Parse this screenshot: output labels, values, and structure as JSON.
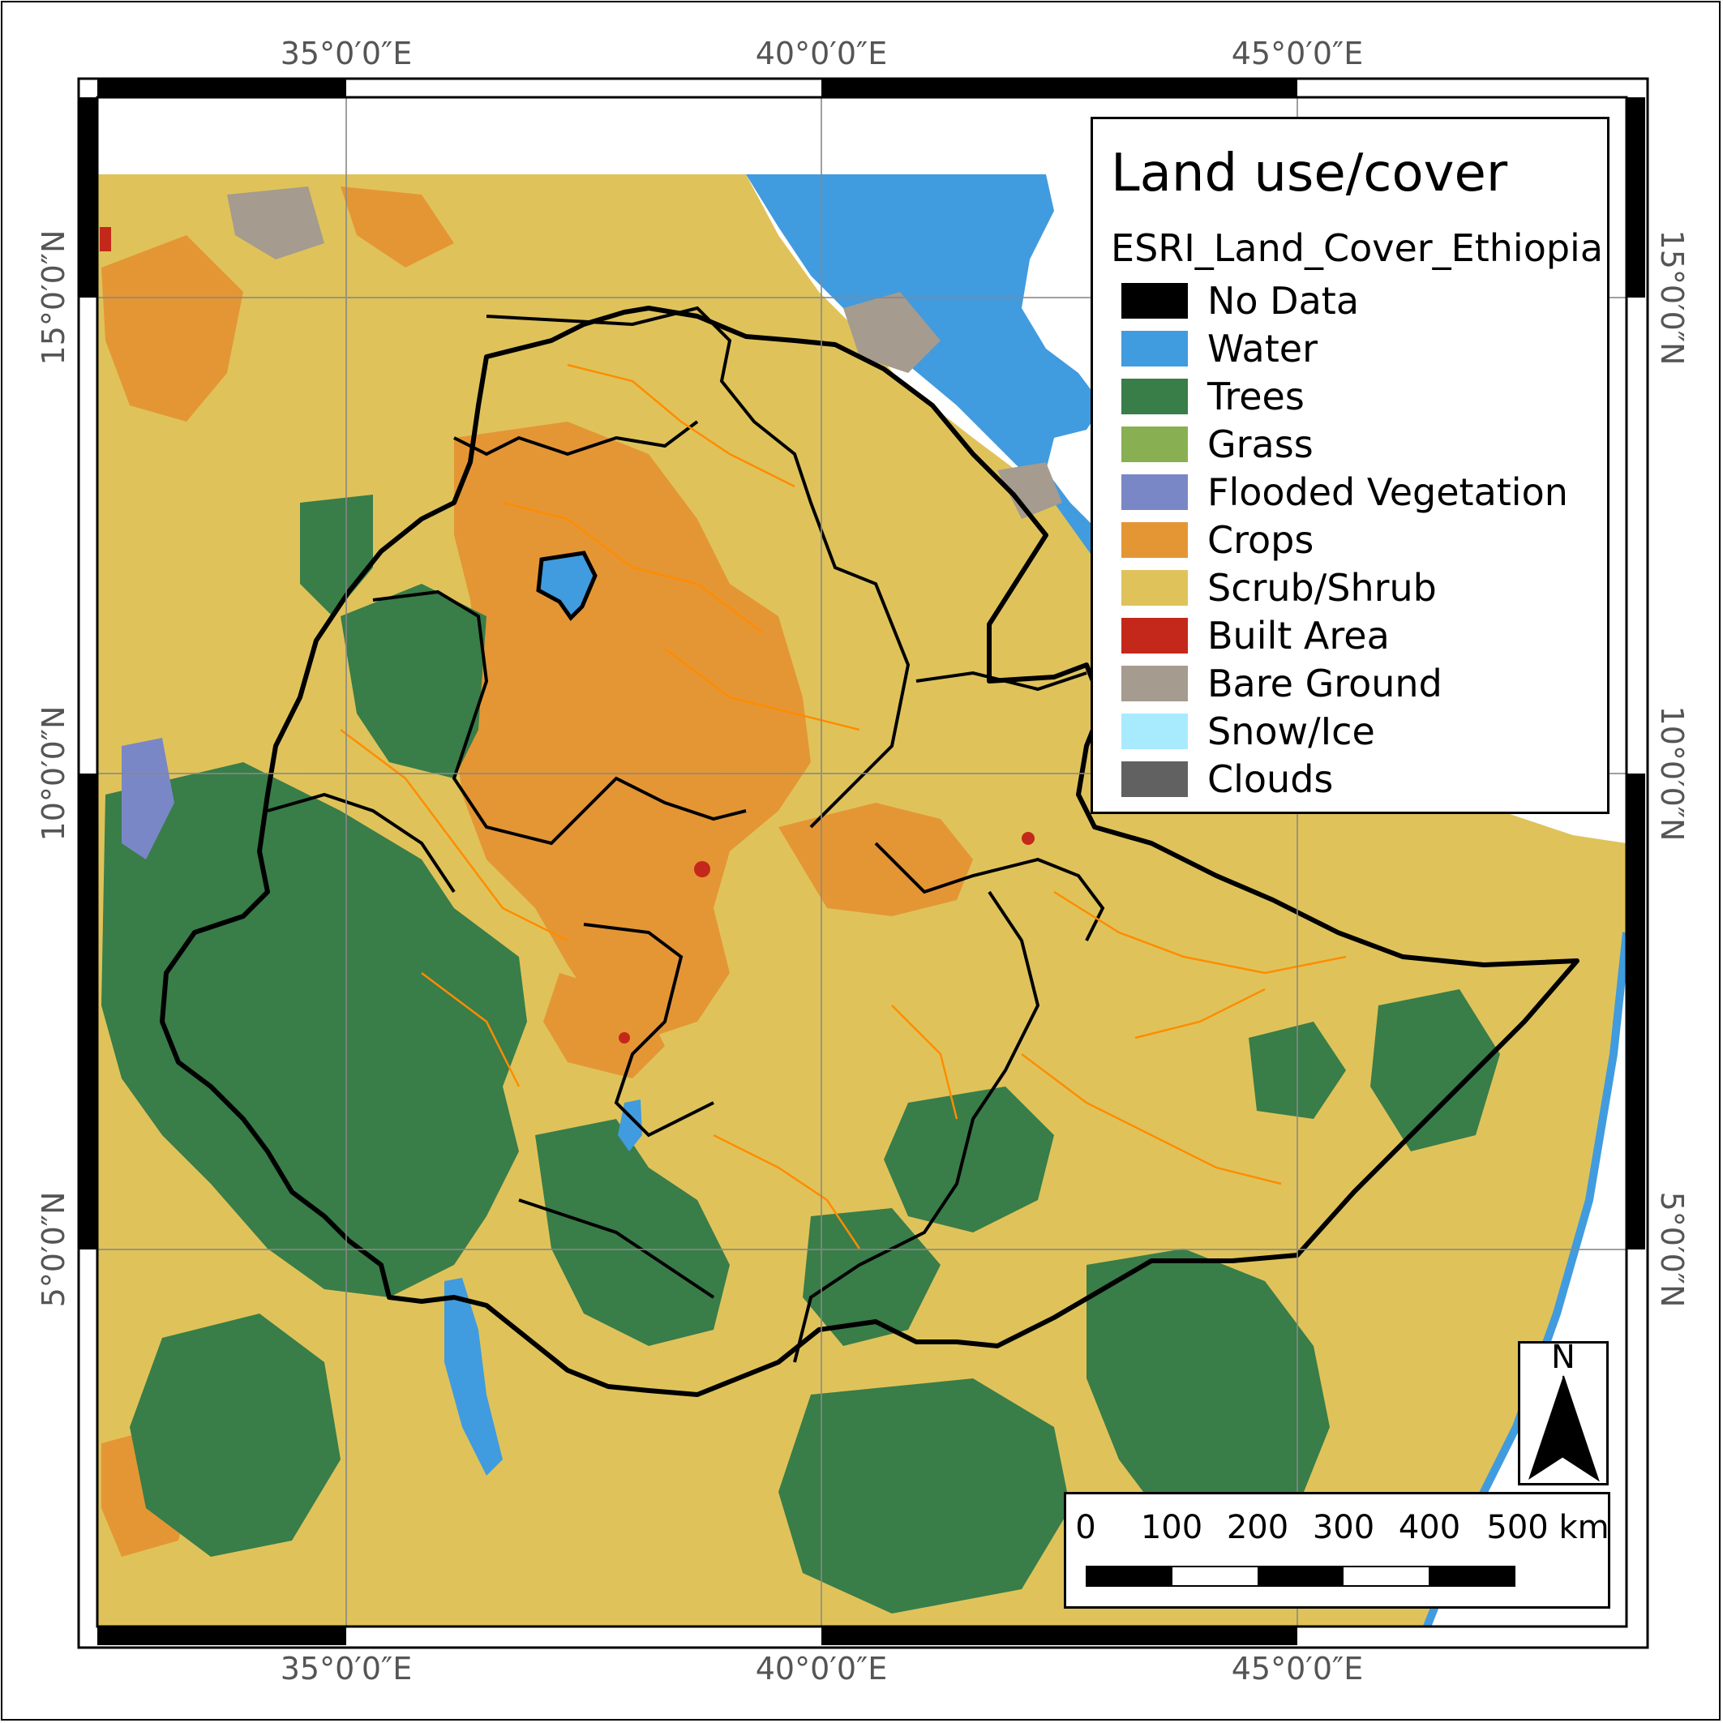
{
  "map": {
    "coord_labels": {
      "top": [
        "35°0′0″E",
        "40°0′0″E",
        "45°0′0″E"
      ],
      "bottom": [
        "35°0′0″E",
        "40°0′0″E",
        "45°0′0″E"
      ],
      "left": [
        "15°0′0″N",
        "10°0′0″N",
        "5°0′0″N"
      ],
      "right": [
        "15°0′0″N",
        "10°0′0″N",
        "5°0′0″N"
      ]
    },
    "graticule_lon": [
      35,
      40,
      45
    ],
    "graticule_lat": [
      15,
      10,
      5
    ]
  },
  "legend": {
    "title": "Land use/cover",
    "layer_name": "ESRI_Land_Cover_Ethiopia",
    "items": [
      {
        "label": "No Data",
        "color": "#000000"
      },
      {
        "label": "Water",
        "color": "#419bdf"
      },
      {
        "label": "Trees",
        "color": "#397d49"
      },
      {
        "label": "Grass",
        "color": "#88b053"
      },
      {
        "label": "Flooded Vegetation",
        "color": "#7a87c6"
      },
      {
        "label": "Crops",
        "color": "#e49635"
      },
      {
        "label": "Scrub/Shrub",
        "color": "#dfc35a"
      },
      {
        "label": "Built Area",
        "color": "#c4281b"
      },
      {
        "label": "Bare Ground",
        "color": "#a59b8f"
      },
      {
        "label": "Snow/Ice",
        "color": "#a8ebff"
      },
      {
        "label": "Clouds",
        "color": "#616161"
      }
    ]
  },
  "north_arrow": {
    "letter": "N"
  },
  "scale_bar": {
    "labels": [
      "0",
      "100",
      "200",
      "300",
      "400",
      "500 km"
    ]
  }
}
